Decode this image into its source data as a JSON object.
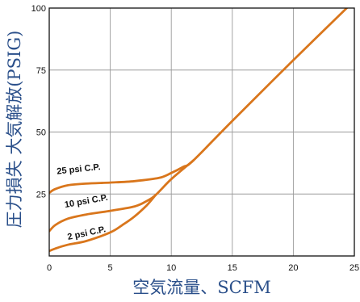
{
  "chart_data": {
    "type": "line",
    "xlabel": "空気流量、SCFM",
    "ylabel": "圧力損失 大気解放(PSIG)",
    "xlim": [
      0,
      25
    ],
    "ylim": [
      0,
      100
    ],
    "x_ticks": [
      0,
      5,
      10,
      15,
      20,
      25
    ],
    "y_ticks": [
      25,
      50,
      75,
      100
    ],
    "y_tick_labels": [
      "25",
      "50",
      "75",
      "100"
    ],
    "x_tick_labels": [
      "0",
      "5",
      "10",
      "15",
      "20",
      "25"
    ],
    "grid": true,
    "line_color": "#d9761c",
    "grid_color": "#9a9a9a",
    "series": [
      {
        "name": "25 psi C.P.",
        "x": [
          0,
          0.5,
          1.5,
          3,
          5,
          7,
          9,
          10,
          11,
          11.8,
          15,
          20,
          25
        ],
        "y": [
          25.5,
          27,
          28.5,
          29.2,
          29.6,
          30.2,
          31.5,
          33.5,
          36,
          38.5,
          54.5,
          79,
          103
        ]
      },
      {
        "name": "10 psi C.P.",
        "x": [
          0,
          0.5,
          1.5,
          3,
          5,
          7,
          8,
          8.7,
          10,
          11.8
        ],
        "y": [
          10,
          12.5,
          15,
          16.7,
          18.2,
          20,
          22.2,
          24.5,
          31,
          38.5
        ]
      },
      {
        "name": "2 psi C.P.",
        "x": [
          0,
          0.5,
          1.5,
          3,
          5,
          6,
          7,
          8,
          8.7
        ],
        "y": [
          2,
          3,
          4.5,
          6,
          9.5,
          12.5,
          16,
          20.5,
          24.5
        ]
      }
    ],
    "curve_labels": [
      "25 psi C.P.",
      "10 psi C.P.",
      "2 psi C.P."
    ]
  }
}
